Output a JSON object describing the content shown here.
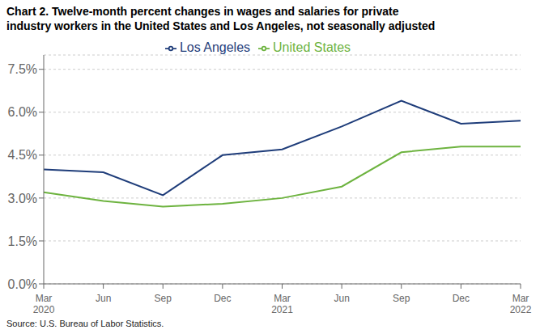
{
  "chart_data": {
    "type": "line",
    "title": "Chart 2. Twelve-month percent changes in wages and salaries for private\nindustry workers in the United States and Los Angeles, not seasonally adjusted",
    "categories": [
      "Mar\n2020",
      "Jun",
      "Sep",
      "Dec",
      "Mar\n2021",
      "Jun",
      "Sep",
      "Dec",
      "Mar\n2022"
    ],
    "series": [
      {
        "name": "Los Angeles",
        "color": "#1f3d7a",
        "values": [
          4.0,
          3.9,
          3.1,
          4.5,
          4.7,
          5.5,
          6.4,
          5.6,
          5.7
        ]
      },
      {
        "name": "United States",
        "color": "#6db33f",
        "values": [
          3.2,
          2.9,
          2.7,
          2.8,
          3.0,
          3.4,
          4.6,
          4.8,
          4.8
        ]
      }
    ],
    "ylim": [
      0.0,
      8.0
    ],
    "yticks": [
      {
        "value": 0.0,
        "label": "0.0%"
      },
      {
        "value": 1.5,
        "label": "1.5%"
      },
      {
        "value": 3.0,
        "label": "3.0%"
      },
      {
        "value": 4.5,
        "label": "4.5%"
      },
      {
        "value": 6.0,
        "label": "6.0%"
      },
      {
        "value": 7.5,
        "label": "7.5%"
      }
    ],
    "grid": true,
    "legend": "top",
    "annotations": [
      "Source: U.S. Bureau of Labor Statistics."
    ]
  }
}
